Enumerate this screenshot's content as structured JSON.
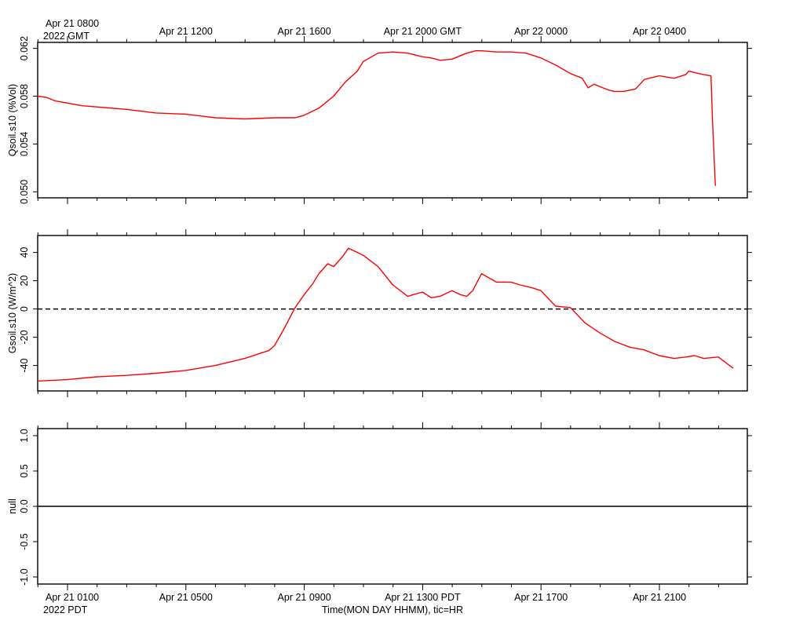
{
  "chart_data": [
    {
      "type": "line",
      "ylabel": "Qsoil.s10 (%Vol)",
      "ylim": [
        0.0495,
        0.0625
      ],
      "y_ticks": [
        "0.050",
        "0.054",
        "0.058",
        "0.062"
      ],
      "y_tick_values": [
        0.05,
        0.054,
        0.058,
        0.062
      ],
      "series": [
        {
          "color": "#ff0000",
          "x": [
            0.0,
            0.3,
            0.6,
            1.5,
            2.0,
            3.0,
            4.0,
            5.0,
            6.0,
            7.0,
            8.0,
            8.7,
            9.0,
            9.5,
            10.0,
            10.4,
            10.8,
            11.0,
            11.5,
            12.0,
            12.5,
            13.0,
            13.3,
            13.6,
            14.0,
            14.5,
            14.8,
            15.0,
            15.5,
            16.0,
            16.5,
            17.0,
            17.5,
            18.0,
            18.4,
            18.6,
            18.8,
            19.0,
            19.3,
            19.5,
            19.8,
            20.0,
            20.2,
            20.5,
            21.0,
            21.5,
            21.9,
            22.0,
            22.5,
            22.75,
            22.8,
            22.9
          ],
          "y": [
            0.058,
            0.0579,
            0.0576,
            0.0572,
            0.0571,
            0.0569,
            0.0566,
            0.0565,
            0.0562,
            0.0561,
            0.0562,
            0.0562,
            0.0564,
            0.057,
            0.058,
            0.0592,
            0.0601,
            0.0609,
            0.0616,
            0.0617,
            0.0616,
            0.0613,
            0.0612,
            0.061,
            0.0611,
            0.0616,
            0.0618,
            0.0618,
            0.0617,
            0.0617,
            0.0616,
            0.0612,
            0.0606,
            0.0599,
            0.0595,
            0.0587,
            0.059,
            0.0588,
            0.0585,
            0.0584,
            0.0584,
            0.0585,
            0.0586,
            0.0594,
            0.0597,
            0.0595,
            0.0598,
            0.0601,
            0.0598,
            0.0597,
            0.056,
            0.0505
          ]
        }
      ]
    },
    {
      "type": "line",
      "ylabel": "Gsoil.s10 (W/m^2)",
      "ylim": [
        -58,
        52
      ],
      "y_ticks": [
        "-40",
        "-20",
        "0",
        "20",
        "40"
      ],
      "y_tick_values": [
        -40,
        -20,
        0,
        20,
        40
      ],
      "reference_line": 0,
      "series": [
        {
          "color": "#ff0000",
          "x": [
            0.0,
            1.0,
            2.0,
            3.0,
            4.0,
            5.0,
            6.0,
            7.0,
            7.5,
            7.8,
            8.0,
            8.3,
            8.7,
            9.0,
            9.3,
            9.5,
            9.8,
            10.0,
            10.3,
            10.5,
            10.7,
            11.0,
            11.5,
            12.0,
            12.5,
            13.0,
            13.3,
            13.6,
            14.0,
            14.3,
            14.5,
            14.7,
            15.0,
            15.5,
            16.0,
            16.3,
            16.7,
            17.0,
            17.5,
            18.0,
            18.5,
            19.0,
            19.5,
            20.0,
            20.5,
            21.0,
            21.5,
            21.9,
            22.2,
            22.5,
            23.0,
            23.5
          ],
          "y": [
            -51,
            -50,
            -48,
            -47,
            -45.5,
            -43.5,
            -40,
            -35,
            -31.5,
            -29.5,
            -26,
            -15,
            1,
            10,
            18,
            25,
            32,
            30,
            37,
            43,
            41,
            38,
            30,
            17,
            9,
            12,
            8,
            9,
            13,
            10,
            9,
            13,
            25,
            19,
            19,
            17,
            15,
            13,
            2,
            1,
            -10,
            -17,
            -23,
            -27,
            -29,
            -33,
            -35,
            -34,
            -33,
            -35,
            -34,
            -42
          ]
        }
      ]
    },
    {
      "type": "line",
      "ylabel": "null",
      "ylim": [
        -1.1,
        1.1
      ],
      "y_ticks": [
        "-1.0",
        "-0.5",
        "0.0",
        "0.5",
        "1.0"
      ],
      "y_tick_values": [
        -1.0,
        -0.5,
        0.0,
        0.5,
        1.0
      ],
      "reference_line": 0,
      "series": []
    }
  ],
  "time_axis": {
    "hours_shown": 23.5,
    "top_labels": [
      {
        "hour": 0,
        "text": "Apr 21 0800"
      },
      {
        "hour": 4,
        "text": "Apr 21 1200"
      },
      {
        "hour": 8,
        "text": "Apr 21 1600"
      },
      {
        "hour": 12,
        "text": "Apr 21 2000 GMT"
      },
      {
        "hour": 16,
        "text": "Apr 22 0000"
      },
      {
        "hour": 20,
        "text": "Apr 22 0400"
      }
    ],
    "top_year": "2022 GMT",
    "bottom_labels": [
      {
        "hour": 0,
        "text": "Apr 21 0100"
      },
      {
        "hour": 4,
        "text": "Apr 21 0500"
      },
      {
        "hour": 8,
        "text": "Apr 21 0900"
      },
      {
        "hour": 12,
        "text": "Apr 21 1300 PDT"
      },
      {
        "hour": 16,
        "text": "Apr 21 1700"
      },
      {
        "hour": 20,
        "text": "Apr 21 2100"
      }
    ],
    "bottom_year": "2022 PDT",
    "xlabel": "Time(MON DAY HHMM), tic=HR"
  }
}
